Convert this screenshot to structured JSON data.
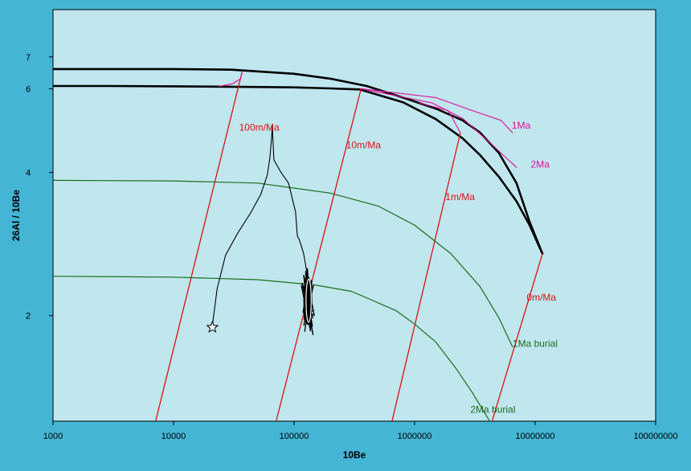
{
  "chart_data": {
    "type": "line",
    "title": "",
    "xlabel": "10Be",
    "ylabel": "26Al / 10Be",
    "x_scale": "log",
    "y_scale": "log",
    "xlim": [
      1000,
      100000000
    ],
    "ylim": [
      1.2,
      8.8
    ],
    "x_ticks": [
      1000,
      10000,
      100000,
      1000000,
      10000000,
      100000000
    ],
    "x_tick_labels": [
      "1000",
      "10000",
      "100000",
      "1000000",
      "10000000",
      "100000000"
    ],
    "y_ticks": [
      2,
      4,
      6,
      7
    ],
    "y_tick_labels": [
      "2",
      "4",
      "6",
      "7"
    ],
    "grid": false,
    "colors": {
      "outer_bg": "#45b5d5",
      "plot_bg": "#c0e6ee",
      "erosion": "#dd1111",
      "burial": "#1a6e1a",
      "isochron": "#e0109a",
      "envelope": "#000000",
      "path": "#000000"
    },
    "annotations": [
      {
        "text": "100m/Ma",
        "x": 35000,
        "y": 4.9,
        "color": "#dd1111"
      },
      {
        "text": "10m/Ma",
        "x": 270000,
        "y": 4.5,
        "color": "#dd1111"
      },
      {
        "text": "1m/Ma",
        "x": 1800000,
        "y": 3.5,
        "color": "#dd1111"
      },
      {
        "text": "0m/Ma",
        "x": 8500000,
        "y": 2.15,
        "color": "#dd1111"
      },
      {
        "text": "1Ma",
        "x": 6400000,
        "y": 4.95,
        "color": "#e0109a"
      },
      {
        "text": "2Ma",
        "x": 9200000,
        "y": 4.1,
        "color": "#e0109a"
      },
      {
        "text": "1Ma burial",
        "x": 6500000,
        "y": 1.72,
        "color": "#1a6e1a"
      },
      {
        "text": "2Ma burial",
        "x": 2900000,
        "y": 1.25,
        "color": "#1a6e1a"
      }
    ],
    "series": [
      {
        "kind": "envelope",
        "x": [
          1000,
          3000,
          10000,
          30000,
          100000,
          200000,
          400000,
          800000,
          1500000,
          2500000,
          3500000,
          5000000,
          7000000,
          9000000,
          11500000
        ],
        "y": [
          6.6,
          6.6,
          6.6,
          6.58,
          6.45,
          6.3,
          6.08,
          5.75,
          5.45,
          5.15,
          4.85,
          4.4,
          3.8,
          3.15,
          2.7
        ]
      },
      {
        "kind": "envelope",
        "x": [
          1000,
          3000,
          10000,
          30000,
          100000,
          200000,
          350000,
          800000,
          1500000,
          2500000,
          3500000,
          5000000,
          7000000,
          9000000,
          11500000
        ],
        "y": [
          6.08,
          6.08,
          6.07,
          6.06,
          6.04,
          6.01,
          5.98,
          5.62,
          5.18,
          4.72,
          4.35,
          3.92,
          3.48,
          3.1,
          2.7
        ]
      },
      {
        "kind": "erosion",
        "x": [
          7100,
          37000
        ],
        "y": [
          1.2,
          6.5
        ]
      },
      {
        "kind": "erosion",
        "x": [
          71000,
          360000
        ],
        "y": [
          1.2,
          6.0
        ]
      },
      {
        "kind": "erosion",
        "x": [
          650000,
          2400000
        ],
        "y": [
          1.2,
          4.85
        ]
      },
      {
        "kind": "erosion",
        "x": [
          4400000,
          11500000
        ],
        "y": [
          1.2,
          2.7
        ]
      },
      {
        "kind": "isochron",
        "x": [
          360000,
          1500000,
          3000000,
          5200000,
          6500000
        ],
        "y": [
          6.0,
          5.75,
          5.4,
          5.15,
          4.85
        ]
      },
      {
        "kind": "isochron",
        "x": [
          360000,
          1400000,
          2500000,
          4500000,
          7000000
        ],
        "y": [
          6.0,
          5.6,
          5.2,
          4.55,
          4.1
        ]
      },
      {
        "kind": "isochron",
        "x": [
          24000,
          31000,
          36000,
          37000
        ],
        "y": [
          6.07,
          6.15,
          6.3,
          6.5
        ]
      },
      {
        "kind": "isochron",
        "x": [
          1100000,
          1900000,
          2400000
        ],
        "y": [
          5.6,
          5.4,
          4.85
        ]
      },
      {
        "kind": "burial",
        "x": [
          1000,
          10000,
          50000,
          200000,
          500000,
          1000000,
          2000000,
          3500000,
          5000000,
          6500000
        ],
        "y": [
          3.85,
          3.84,
          3.8,
          3.62,
          3.4,
          3.1,
          2.7,
          2.3,
          1.98,
          1.72
        ]
      },
      {
        "kind": "burial",
        "x": [
          1000,
          10000,
          50000,
          150000,
          300000,
          700000,
          1000000,
          1500000,
          2200000,
          3000000,
          4200000
        ],
        "y": [
          2.42,
          2.41,
          2.38,
          2.32,
          2.25,
          2.05,
          1.92,
          1.76,
          1.55,
          1.38,
          1.2
        ]
      },
      {
        "kind": "path",
        "x": [
          21000,
          21500,
          23000,
          27000,
          34000,
          44000,
          53000,
          60000,
          63000,
          65000,
          66000,
          68000,
          78000,
          90000,
          103000,
          106000,
          107000,
          110000,
          115000,
          120000,
          125000,
          128000,
          132000
        ],
        "y": [
          1.9,
          2.0,
          2.28,
          2.68,
          2.98,
          3.3,
          3.6,
          3.95,
          4.3,
          4.7,
          5.0,
          4.25,
          4.0,
          3.8,
          3.3,
          2.98,
          2.93,
          2.9,
          2.8,
          2.7,
          2.55,
          2.45,
          2.35
        ]
      }
    ],
    "markers": [
      {
        "symbol": "star",
        "x": 21000,
        "y": 1.89
      }
    ],
    "cluster": {
      "x": 130000,
      "y": 2.15
    }
  }
}
